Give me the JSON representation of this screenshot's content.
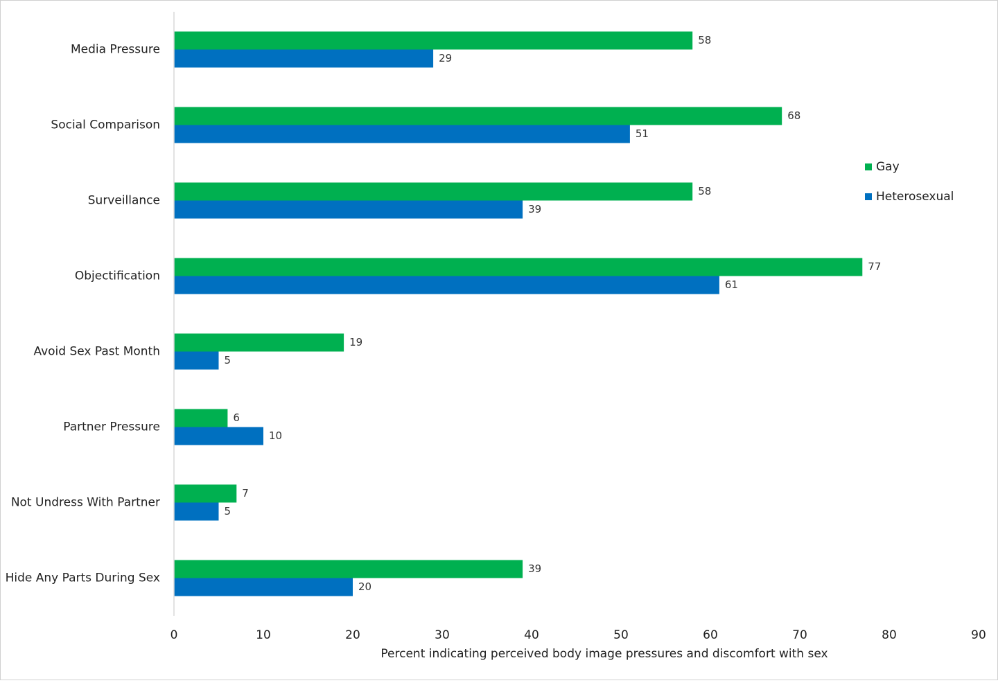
{
  "chart_data": {
    "type": "bar",
    "orientation": "horizontal",
    "x_label": "Percent indicating perceived body image pressures and discomfort with sex",
    "categories": [
      "Media Pressure",
      "Social Comparison",
      "Surveillance",
      "Objectification",
      "Avoid Sex Past Month",
      "Partner Pressure",
      "Not Undress With Partner",
      "Hide Any Parts During Sex"
    ],
    "series": [
      {
        "name": "Gay",
        "color": "#00b050",
        "values": [
          58,
          68,
          58,
          77,
          19,
          6,
          7,
          39
        ]
      },
      {
        "name": "Heterosexual",
        "color": "#0070c0",
        "values": [
          29,
          51,
          39,
          61,
          5,
          10,
          5,
          20
        ]
      }
    ],
    "xlim": [
      0,
      90
    ],
    "xticks": [
      0,
      10,
      20,
      30,
      40,
      50,
      60,
      70,
      80,
      90
    ],
    "grid": false,
    "legend": "right"
  }
}
